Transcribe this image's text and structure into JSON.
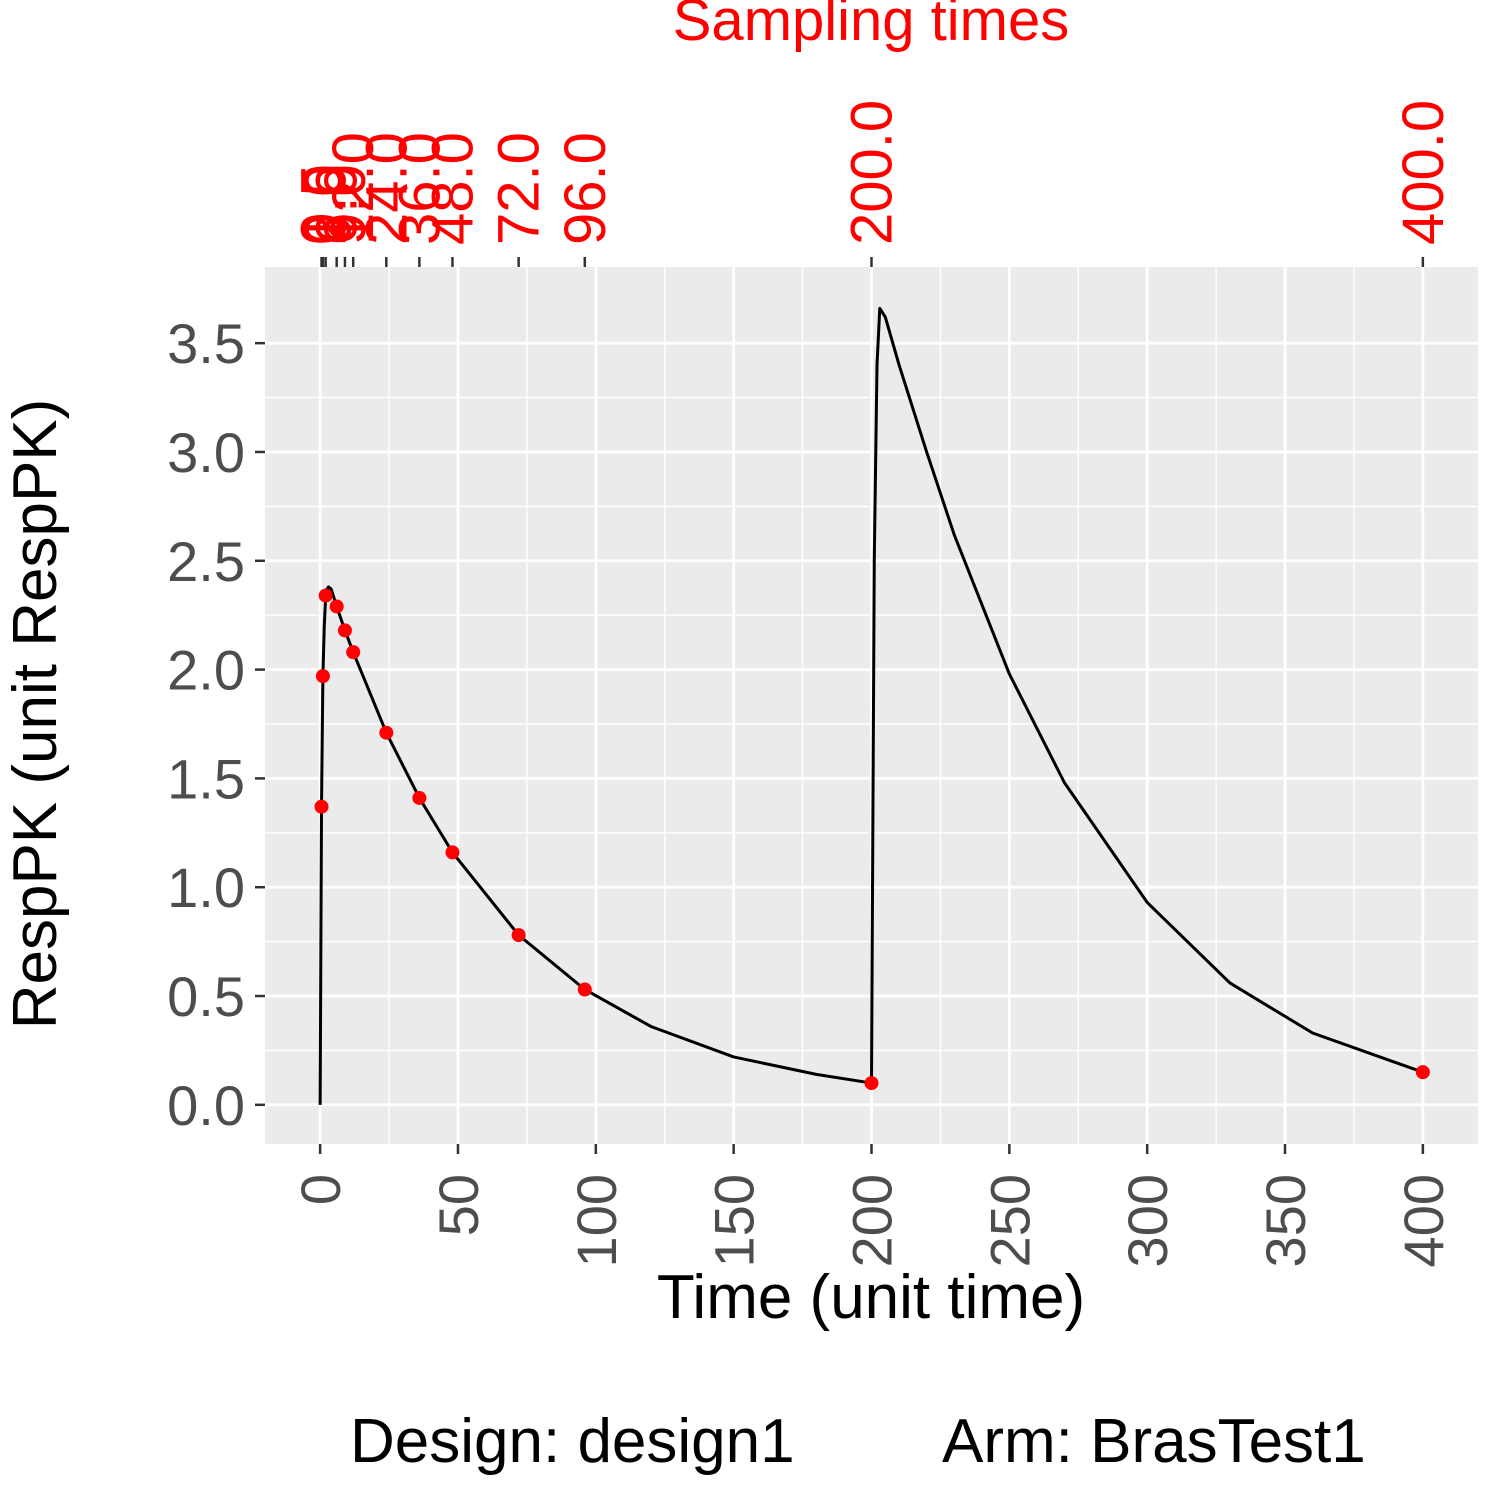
{
  "chart_data": {
    "type": "line",
    "xlabel": "Time (unit time)",
    "ylabel": "RespPK (unit RespPK)",
    "top_axis_title": "Sampling times",
    "xlim": [
      -20,
      420
    ],
    "ylim": [
      -0.18,
      3.85
    ],
    "x_ticks": [
      0,
      50,
      100,
      150,
      200,
      250,
      300,
      350,
      400
    ],
    "x_tick_labels": [
      "0",
      "50",
      "100",
      "150",
      "200",
      "250",
      "300",
      "350",
      "400"
    ],
    "y_ticks": [
      0.0,
      0.5,
      1.0,
      1.5,
      2.0,
      2.5,
      3.0,
      3.5
    ],
    "y_tick_labels": [
      "0.0",
      "0.5",
      "1.0",
      "1.5",
      "2.0",
      "2.5",
      "3.0",
      "3.5"
    ],
    "sampling_times": [
      0.5,
      1,
      2,
      6,
      9,
      12,
      24,
      36,
      48,
      72,
      96,
      200,
      400
    ],
    "sampling_time_labels": [
      "0.5",
      "1.0",
      "2.0",
      "6.0",
      "9.0",
      "12.0",
      "24.0",
      "36.0",
      "48.0",
      "72.0",
      "96.0",
      "200.0",
      "400.0"
    ],
    "series": [
      {
        "role": "model-curve",
        "color": "#000000",
        "x": [
          0,
          0.5,
          1,
          1.5,
          2,
          2.5,
          3,
          4,
          6,
          9,
          12,
          24,
          36,
          48,
          72,
          96,
          120,
          150,
          180,
          200,
          200.5,
          201,
          202,
          203,
          205,
          210,
          220,
          230,
          250,
          270,
          300,
          330,
          360,
          400
        ],
        "y": [
          0.0,
          1.37,
          1.97,
          2.2,
          2.33,
          2.37,
          2.38,
          2.37,
          2.29,
          2.18,
          2.08,
          1.71,
          1.41,
          1.16,
          0.78,
          0.53,
          0.36,
          0.22,
          0.14,
          0.1,
          1.3,
          2.5,
          3.4,
          3.66,
          3.62,
          3.4,
          3.0,
          2.62,
          1.98,
          1.48,
          0.93,
          0.56,
          0.33,
          0.15
        ]
      },
      {
        "role": "sampling-points",
        "color": "#ff0000",
        "x": [
          0.5,
          1,
          2,
          6,
          9,
          12,
          24,
          36,
          48,
          72,
          96,
          200,
          400
        ],
        "y": [
          1.37,
          1.97,
          2.34,
          2.29,
          2.18,
          2.08,
          1.71,
          1.41,
          1.16,
          0.78,
          0.53,
          0.1,
          0.15
        ]
      }
    ],
    "grid": true,
    "panel_background": "#ebebeb",
    "grid_color": "#ffffff",
    "highlight_color": "#ff0000"
  },
  "caption": {
    "design": "Design: design1",
    "arm": "Arm: BrasTest1"
  }
}
